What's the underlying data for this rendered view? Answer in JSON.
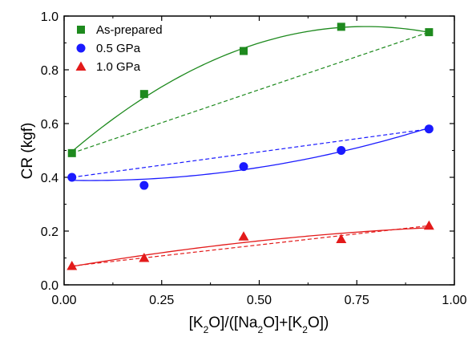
{
  "chart_data": {
    "type": "scatter",
    "xlabel_parts": [
      "[K",
      "2",
      "O]/([Na",
      "2",
      "O]+[K",
      "2",
      "O])"
    ],
    "ylabel": "CR (kgf)",
    "xlim": [
      0.0,
      1.0
    ],
    "ylim": [
      0.0,
      1.0
    ],
    "x_ticks": [
      "0.00",
      "0.25",
      "0.50",
      "0.75",
      "1.00"
    ],
    "y_ticks": [
      "0.0",
      "0.2",
      "0.4",
      "0.6",
      "0.8",
      "1.0"
    ],
    "legend_position": "top-left",
    "series": [
      {
        "name": "As-prepared",
        "marker": "square",
        "color": "#1e8a1e",
        "x": [
          0.02,
          0.205,
          0.46,
          0.71,
          0.935
        ],
        "y": [
          0.49,
          0.71,
          0.87,
          0.96,
          0.94
        ],
        "fit": "curve",
        "connector": "dashed"
      },
      {
        "name": "0.5 GPa",
        "marker": "circle",
        "color": "#1a1aff",
        "x": [
          0.02,
          0.205,
          0.46,
          0.71,
          0.935
        ],
        "y": [
          0.4,
          0.37,
          0.44,
          0.5,
          0.58
        ],
        "fit": "curve",
        "connector": "dashed"
      },
      {
        "name": "1.0 GPa",
        "marker": "triangle",
        "color": "#e31a1a",
        "x": [
          0.02,
          0.205,
          0.46,
          0.71,
          0.935
        ],
        "y": [
          0.07,
          0.1,
          0.18,
          0.17,
          0.22
        ],
        "fit": "curve",
        "connector": "dashed"
      }
    ]
  }
}
